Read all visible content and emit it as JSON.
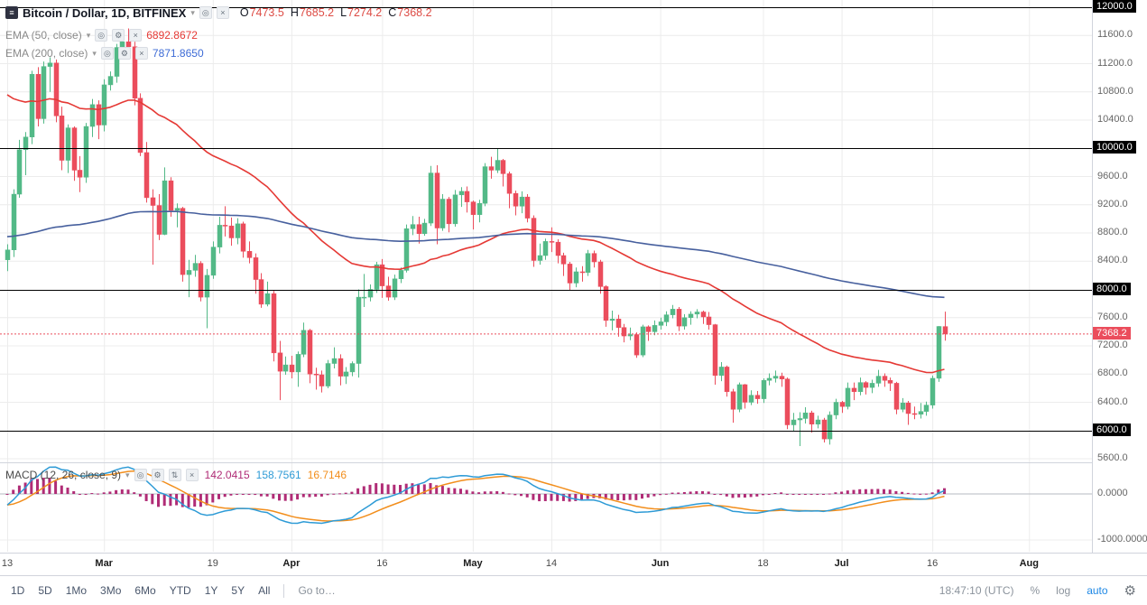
{
  "header": {
    "symbol_title": "Bitcoin / Dollar, 1D, BITFINEX",
    "ohlc_value_color": "#dd4b44",
    "ohlc": [
      {
        "k": "O",
        "v": "7473.5"
      },
      {
        "k": "H",
        "v": "7685.2"
      },
      {
        "k": "L",
        "v": "7274.2"
      },
      {
        "k": "C",
        "v": "7368.2"
      }
    ],
    "indicators": [
      {
        "label": "EMA (50, close)",
        "value": "6892.8672",
        "value_color": "#e53935"
      },
      {
        "label": "EMA (200, close)",
        "value": "7871.8650",
        "value_color": "#3d6bd6"
      }
    ]
  },
  "macd_legend": {
    "label": "MACD (12, 26, close, 9)",
    "hist_value": "142.0415",
    "macd_value": "158.7561",
    "signal_value": "16.7146",
    "hist_color": "#b02c76",
    "macd_color": "#2e9bd6",
    "signal_color": "#f28e1c"
  },
  "icons": {
    "menu": "≡",
    "dropdown": "▾",
    "eye": "◎",
    "gear": "⚙",
    "updown": "⇅",
    "close": "×",
    "toolbar_gear": "⚙"
  },
  "toolbar": {
    "ranges": [
      "1D",
      "5D",
      "1Mo",
      "3Mo",
      "6Mo",
      "YTD",
      "1Y",
      "5Y",
      "All"
    ],
    "goto": "Go to…",
    "clock": "18:47:10 (UTC)",
    "percent": "%",
    "log": "log",
    "auto": "auto",
    "auto_color": "#1e88e5"
  },
  "colors": {
    "up": "#53b987",
    "down": "#eb4d5c",
    "grid": "#ececec",
    "level": "#000000",
    "last_price": "#eb4d5c",
    "zero_line": "#b6b9c1",
    "separator": "#d1d4dc"
  },
  "chart_data": {
    "type": "candlestick",
    "title": "Bitcoin / Dollar, 1D, BITFINEX",
    "exchange": "BITFINEX",
    "interval": "1D",
    "ylim": [
      5600,
      12000
    ],
    "price_ticks": [
      12000,
      11600,
      11200,
      10800,
      10400,
      10000,
      9600,
      9200,
      8800,
      8400,
      8000,
      7600,
      7200,
      6800,
      6400,
      6000,
      5600
    ],
    "level_lines": [
      12000,
      10000,
      8000,
      6000
    ],
    "last_price": 7368.2,
    "last_ohlc": {
      "open": 7473.5,
      "high": 7685.2,
      "low": 7274.2,
      "close": 7368.2
    },
    "time_ticks": [
      {
        "i": 0,
        "label": "13",
        "month": false
      },
      {
        "i": 16,
        "label": "Mar",
        "month": true
      },
      {
        "i": 34,
        "label": "19",
        "month": false
      },
      {
        "i": 47,
        "label": "Apr",
        "month": true
      },
      {
        "i": 62,
        "label": "16",
        "month": false
      },
      {
        "i": 77,
        "label": "May",
        "month": true
      },
      {
        "i": 90,
        "label": "14",
        "month": false
      },
      {
        "i": 108,
        "label": "Jun",
        "month": true
      },
      {
        "i": 125,
        "label": "18",
        "month": false
      },
      {
        "i": 138,
        "label": "Jul",
        "month": true
      },
      {
        "i": 153,
        "label": "16",
        "month": false
      },
      {
        "i": 169,
        "label": "Aug",
        "month": true
      }
    ],
    "overlays": [
      {
        "name": "EMA 50",
        "period": 50,
        "seed": 10850,
        "color": "#e53935",
        "last": 6892.8672
      },
      {
        "name": "EMA 200",
        "period": 200,
        "seed": 8750,
        "color": "#47609e",
        "last": 7871.865
      }
    ],
    "lower_pane": {
      "name": "MACD",
      "fast": 12,
      "slow": 26,
      "signal_period": 9,
      "fast_seed": 8100,
      "slow_seed": 8400,
      "macd_color": "#2e9bd6",
      "signal_color": "#f28e1c",
      "hist_color": "#b02c76",
      "ticks": [
        0,
        -1000
      ],
      "last": {
        "hist": 142.0415,
        "macd": 158.7561,
        "signal": 16.7146
      }
    },
    "candles": [
      [
        8420,
        8640,
        8260,
        8560
      ],
      [
        8560,
        9420,
        8460,
        9350
      ],
      [
        9350,
        10120,
        9300,
        9980
      ],
      [
        9980,
        10230,
        9620,
        10160
      ],
      [
        10160,
        11100,
        10060,
        11050
      ],
      [
        11050,
        11150,
        10310,
        10420
      ],
      [
        10420,
        11230,
        10350,
        11160
      ],
      [
        11160,
        11290,
        10800,
        11210
      ],
      [
        11210,
        11260,
        10370,
        10460
      ],
      [
        10460,
        10590,
        9690,
        9830
      ],
      [
        9830,
        10340,
        9650,
        10290
      ],
      [
        10290,
        10310,
        9540,
        9690
      ],
      [
        9690,
        9890,
        9380,
        9590
      ],
      [
        9590,
        10360,
        9510,
        10310
      ],
      [
        10310,
        10700,
        10160,
        10620
      ],
      [
        10620,
        10680,
        10130,
        10330
      ],
      [
        10330,
        10980,
        10240,
        10900
      ],
      [
        10900,
        11090,
        10820,
        11020
      ],
      [
        11020,
        11480,
        10930,
        11430
      ],
      [
        11430,
        11590,
        11290,
        11510
      ],
      [
        11510,
        11700,
        11350,
        11440
      ],
      [
        11440,
        11510,
        10610,
        10710
      ],
      [
        10710,
        10780,
        9890,
        9940
      ],
      [
        9940,
        10090,
        9230,
        9300
      ],
      [
        9300,
        9420,
        8350,
        9190
      ],
      [
        9190,
        9350,
        8700,
        8780
      ],
      [
        8780,
        9730,
        8770,
        9540
      ],
      [
        9540,
        9590,
        9030,
        9120
      ],
      [
        9120,
        9220,
        8880,
        9150
      ],
      [
        9150,
        9170,
        8110,
        8210
      ],
      [
        8210,
        8420,
        7890,
        8270
      ],
      [
        8270,
        8490,
        8180,
        8370
      ],
      [
        8370,
        8400,
        7830,
        7890
      ],
      [
        7890,
        8290,
        7450,
        8200
      ],
      [
        8200,
        8680,
        8150,
        8600
      ],
      [
        8600,
        9030,
        8510,
        8910
      ],
      [
        8910,
        9180,
        8750,
        8900
      ],
      [
        8900,
        9020,
        8620,
        8730
      ],
      [
        8730,
        9010,
        8640,
        8930
      ],
      [
        8930,
        8960,
        8450,
        8540
      ],
      [
        8540,
        8680,
        8370,
        8450
      ],
      [
        8450,
        8510,
        7940,
        8140
      ],
      [
        8140,
        8230,
        7740,
        7790
      ],
      [
        7790,
        8110,
        7760,
        7940
      ],
      [
        7940,
        7980,
        6980,
        7100
      ],
      [
        7100,
        7270,
        6430,
        6840
      ],
      [
        6840,
        7050,
        6790,
        6930
      ],
      [
        6930,
        7060,
        6740,
        6830
      ],
      [
        6830,
        7120,
        6620,
        7080
      ],
      [
        7080,
        7530,
        7040,
        7420
      ],
      [
        7420,
        7440,
        6670,
        6800
      ],
      [
        6800,
        6890,
        6580,
        6790
      ],
      [
        6790,
        6850,
        6540,
        6630
      ],
      [
        6630,
        7000,
        6600,
        6950
      ],
      [
        6950,
        7180,
        6880,
        7020
      ],
      [
        7020,
        7080,
        6640,
        6770
      ],
      [
        6770,
        6900,
        6660,
        6830
      ],
      [
        6830,
        6980,
        6770,
        6950
      ],
      [
        6950,
        8000,
        6750,
        7890
      ],
      [
        7890,
        8220,
        7750,
        7890
      ],
      [
        7890,
        8070,
        7830,
        8000
      ],
      [
        8000,
        8390,
        7950,
        8350
      ],
      [
        8350,
        8430,
        7880,
        8050
      ],
      [
        8050,
        8180,
        7840,
        7890
      ],
      [
        7890,
        8210,
        7850,
        8150
      ],
      [
        8150,
        8310,
        8090,
        8270
      ],
      [
        8270,
        8920,
        8240,
        8860
      ],
      [
        8860,
        9040,
        8770,
        8920
      ],
      [
        8920,
        9030,
        8650,
        8790
      ],
      [
        8790,
        9000,
        8760,
        8940
      ],
      [
        8940,
        9750,
        8900,
        9650
      ],
      [
        9650,
        9760,
        8640,
        8870
      ],
      [
        8870,
        9350,
        8830,
        9280
      ],
      [
        9280,
        9310,
        8810,
        8930
      ],
      [
        8930,
        9410,
        8890,
        9340
      ],
      [
        9340,
        9450,
        9170,
        9390
      ],
      [
        9390,
        9460,
        9090,
        9240
      ],
      [
        9240,
        9260,
        8850,
        9060
      ],
      [
        9060,
        9270,
        8950,
        9220
      ],
      [
        9220,
        9790,
        9180,
        9740
      ],
      [
        9740,
        9880,
        9570,
        9690
      ],
      [
        9690,
        9990,
        9650,
        9830
      ],
      [
        9830,
        9850,
        9460,
        9640
      ],
      [
        9640,
        9670,
        9150,
        9360
      ],
      [
        9360,
        9400,
        9050,
        9180
      ],
      [
        9180,
        9390,
        9080,
        9310
      ],
      [
        9310,
        9350,
        8950,
        9010
      ],
      [
        9010,
        9050,
        8320,
        8410
      ],
      [
        8410,
        8650,
        8350,
        8480
      ],
      [
        8480,
        8720,
        8420,
        8680
      ],
      [
        8680,
        8880,
        8530,
        8670
      ],
      [
        8670,
        8710,
        8370,
        8480
      ],
      [
        8480,
        8520,
        8190,
        8360
      ],
      [
        8360,
        8390,
        7990,
        8090
      ],
      [
        8090,
        8310,
        8030,
        8250
      ],
      [
        8250,
        8330,
        8110,
        8240
      ],
      [
        8240,
        8560,
        8190,
        8510
      ],
      [
        8510,
        8550,
        8310,
        8390
      ],
      [
        8390,
        8420,
        7940,
        8040
      ],
      [
        8040,
        8060,
        7470,
        7560
      ],
      [
        7560,
        7700,
        7420,
        7580
      ],
      [
        7580,
        7640,
        7330,
        7460
      ],
      [
        7460,
        7510,
        7250,
        7340
      ],
      [
        7340,
        7460,
        7280,
        7360
      ],
      [
        7360,
        7390,
        7030,
        7070
      ],
      [
        7070,
        7500,
        7040,
        7470
      ],
      [
        7470,
        7490,
        7270,
        7400
      ],
      [
        7400,
        7560,
        7350,
        7490
      ],
      [
        7490,
        7600,
        7430,
        7540
      ],
      [
        7540,
        7690,
        7480,
        7640
      ],
      [
        7640,
        7780,
        7590,
        7720
      ],
      [
        7720,
        7750,
        7410,
        7480
      ],
      [
        7480,
        7650,
        7430,
        7600
      ],
      [
        7600,
        7690,
        7500,
        7650
      ],
      [
        7650,
        7720,
        7590,
        7680
      ],
      [
        7680,
        7700,
        7510,
        7610
      ],
      [
        7610,
        7680,
        7430,
        7500
      ],
      [
        7500,
        7510,
        6650,
        6780
      ],
      [
        6780,
        6970,
        6700,
        6900
      ],
      [
        6900,
        6920,
        6480,
        6550
      ],
      [
        6550,
        6590,
        6110,
        6300
      ],
      [
        6300,
        6680,
        6260,
        6650
      ],
      [
        6650,
        6660,
        6310,
        6400
      ],
      [
        6400,
        6570,
        6360,
        6500
      ],
      [
        6500,
        6560,
        6380,
        6450
      ],
      [
        6450,
        6740,
        6390,
        6710
      ],
      [
        6710,
        6810,
        6640,
        6740
      ],
      [
        6740,
        6850,
        6680,
        6770
      ],
      [
        6770,
        6820,
        6620,
        6730
      ],
      [
        6730,
        6750,
        6020,
        6080
      ],
      [
        6080,
        6250,
        5990,
        6150
      ],
      [
        6150,
        6260,
        5780,
        6170
      ],
      [
        6170,
        6330,
        6100,
        6250
      ],
      [
        6250,
        6280,
        5970,
        6090
      ],
      [
        6090,
        6210,
        6030,
        6150
      ],
      [
        6150,
        6180,
        5830,
        5880
      ],
      [
        5880,
        6270,
        5800,
        6220
      ],
      [
        6220,
        6450,
        6160,
        6400
      ],
      [
        6400,
        6420,
        6250,
        6340
      ],
      [
        6340,
        6680,
        6300,
        6600
      ],
      [
        6600,
        6680,
        6430,
        6550
      ],
      [
        6550,
        6750,
        6500,
        6680
      ],
      [
        6680,
        6700,
        6510,
        6610
      ],
      [
        6610,
        6720,
        6530,
        6670
      ],
      [
        6670,
        6860,
        6620,
        6770
      ],
      [
        6770,
        6810,
        6620,
        6710
      ],
      [
        6710,
        6750,
        6560,
        6670
      ],
      [
        6670,
        6690,
        6230,
        6300
      ],
      [
        6300,
        6460,
        6260,
        6390
      ],
      [
        6390,
        6420,
        6080,
        6240
      ],
      [
        6240,
        6340,
        6160,
        6230
      ],
      [
        6230,
        6390,
        6170,
        6270
      ],
      [
        6270,
        6410,
        6210,
        6360
      ],
      [
        6360,
        6780,
        6310,
        6740
      ],
      [
        6740,
        7480,
        6690,
        7475
      ],
      [
        7473.5,
        7685.2,
        7274.2,
        7368.2
      ]
    ]
  }
}
